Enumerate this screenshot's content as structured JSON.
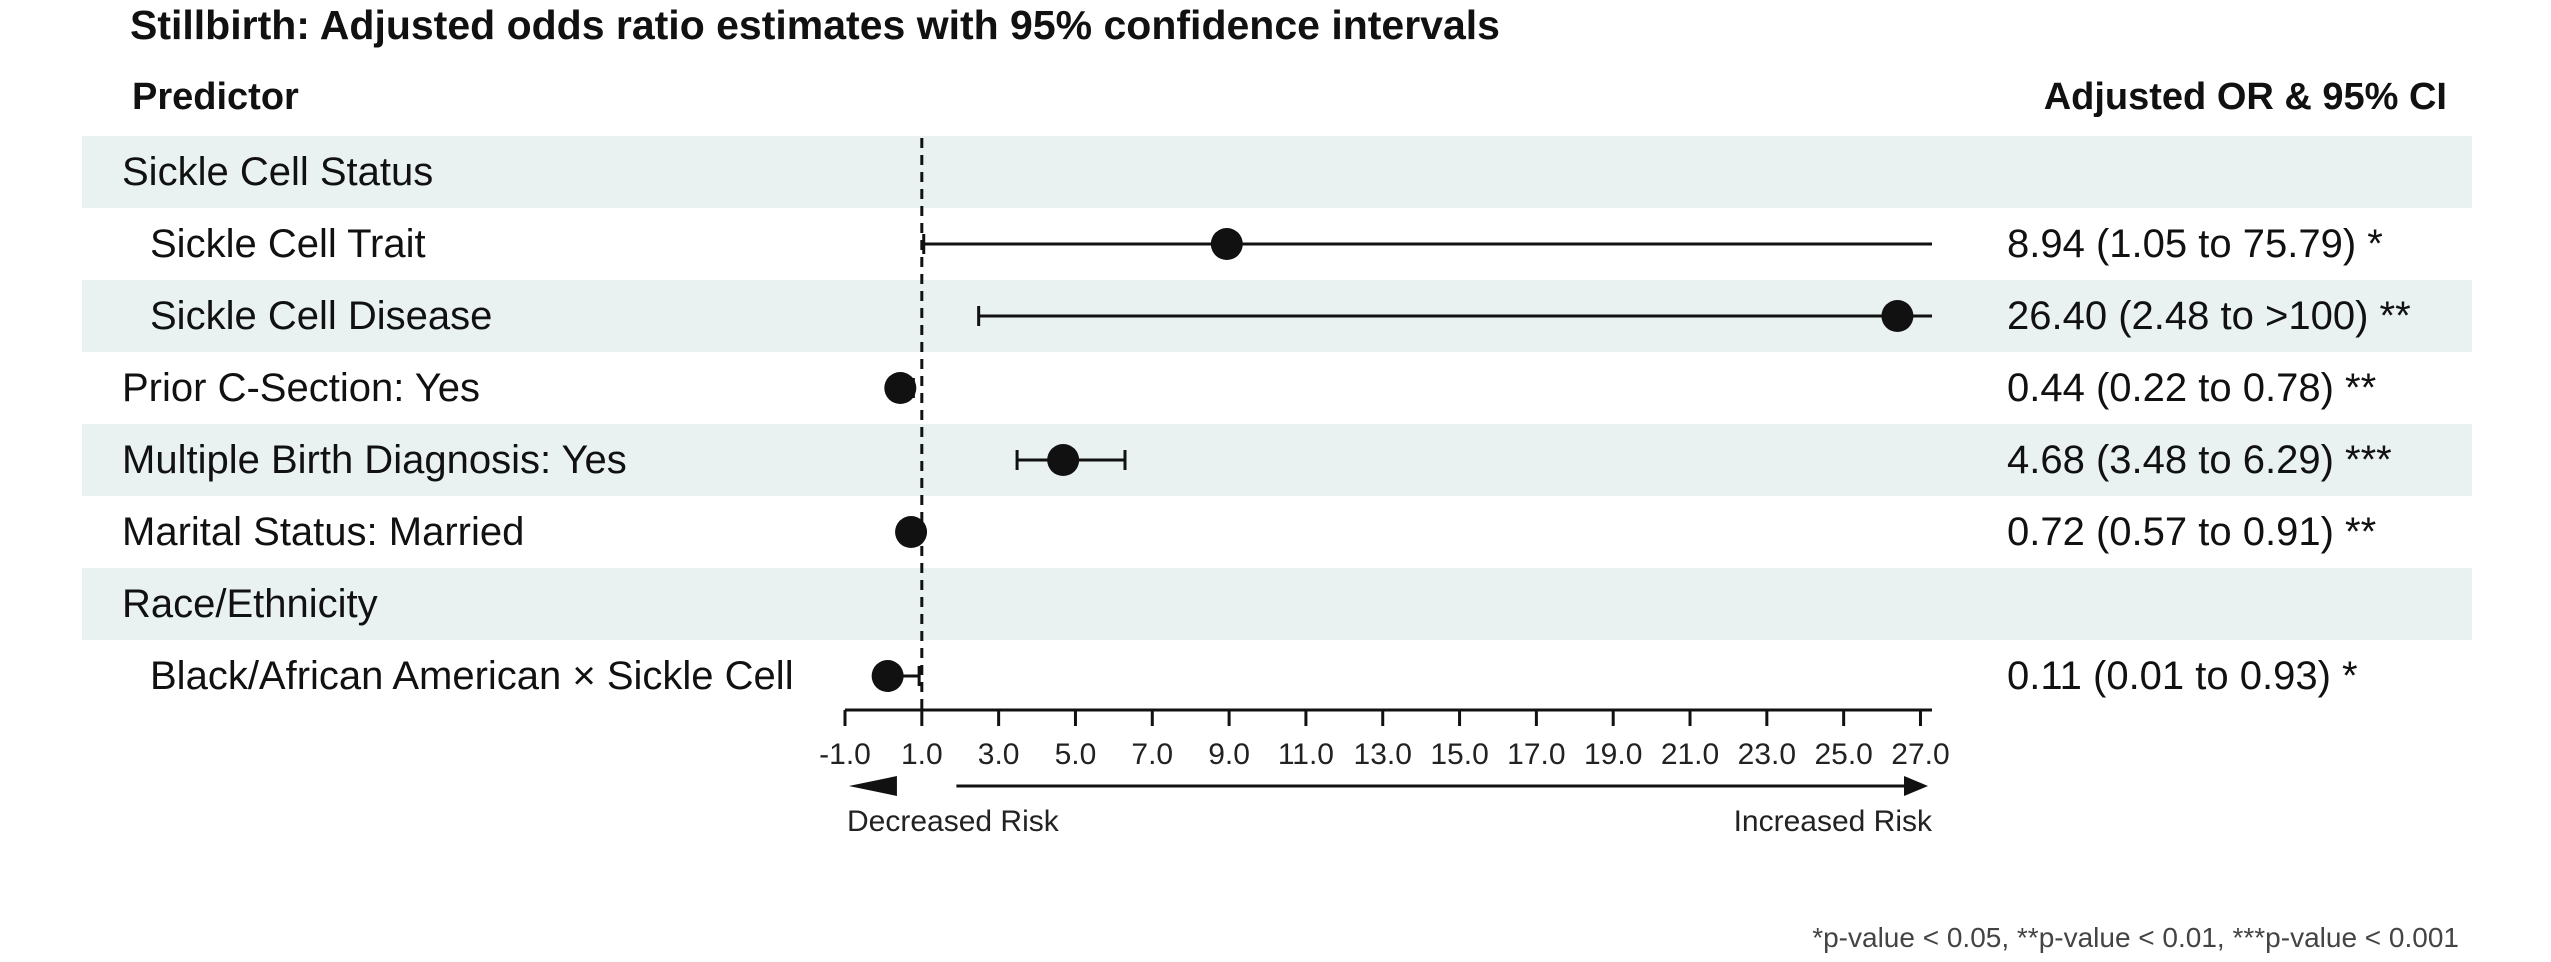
{
  "title": "Stillbirth: Adjusted odds ratio estimates with 95% confidence intervals",
  "columns": {
    "predictor": "Predictor",
    "estimate": "Adjusted OR & 95% CI"
  },
  "rows": [
    {
      "label": "Sickle Cell Status",
      "level": 1,
      "value": "",
      "shaded": true
    },
    {
      "label": "Sickle Cell Trait",
      "level": 2,
      "value": "8.94 (1.05 to 75.79) *",
      "shaded": false
    },
    {
      "label": "Sickle Cell Disease",
      "level": 2,
      "value": "26.40 (2.48 to >100) **",
      "shaded": true
    },
    {
      "label": "Prior C-Section: Yes",
      "level": 1,
      "value": "0.44 (0.22 to 0.78) **",
      "shaded": false
    },
    {
      "label": "Multiple Birth Diagnosis: Yes",
      "level": 1,
      "value": "4.68 (3.48 to 6.29) ***",
      "shaded": true
    },
    {
      "label": "Marital Status: Married",
      "level": 1,
      "value": "0.72 (0.57 to 0.91) **",
      "shaded": false
    },
    {
      "label": "Race/Ethnicity",
      "level": 1,
      "value": "",
      "shaded": true
    },
    {
      "label": "Black/African American × Sickle Cell",
      "level": 2,
      "value": "0.11 (0.01 to 0.93) *",
      "shaded": false
    }
  ],
  "chart_data": {
    "type": "forest",
    "title": "Stillbirth: Adjusted odds ratio estimates with 95% confidence intervals",
    "xlim": [
      -1,
      27.3
    ],
    "reference_line": 1,
    "x_ticks": [
      -1,
      1,
      3,
      5,
      7,
      9,
      11,
      13,
      15,
      17,
      19,
      21,
      23,
      25,
      27
    ],
    "x_tick_labels": [
      "-1.0",
      "1.0",
      "3.0",
      "5.0",
      "7.0",
      "9.0",
      "11.0",
      "13.0",
      "15.0",
      "17.0",
      "19.0",
      "21.0",
      "23.0",
      "25.0",
      "27.0"
    ],
    "points": [
      {
        "row": 1,
        "or": 8.94,
        "lower": 1.05,
        "upper": 75.79,
        "clipped_upper": true
      },
      {
        "row": 2,
        "or": 26.4,
        "lower": 2.48,
        "upper": null,
        "clipped_upper": true
      },
      {
        "row": 3,
        "or": 0.44,
        "lower": 0.22,
        "upper": 0.78,
        "clipped_upper": false
      },
      {
        "row": 4,
        "or": 4.68,
        "lower": 3.48,
        "upper": 6.29,
        "clipped_upper": false
      },
      {
        "row": 5,
        "or": 0.72,
        "lower": 0.57,
        "upper": 0.91,
        "clipped_upper": false
      },
      {
        "row": 7,
        "or": 0.11,
        "lower": 0.01,
        "upper": 0.93,
        "clipped_upper": false
      }
    ],
    "direction_labels": {
      "left": "Decreased Risk",
      "right": "Increased Risk"
    },
    "footnote": "*p-value < 0.05, **p-value < 0.01, ***p-value < 0.001"
  }
}
